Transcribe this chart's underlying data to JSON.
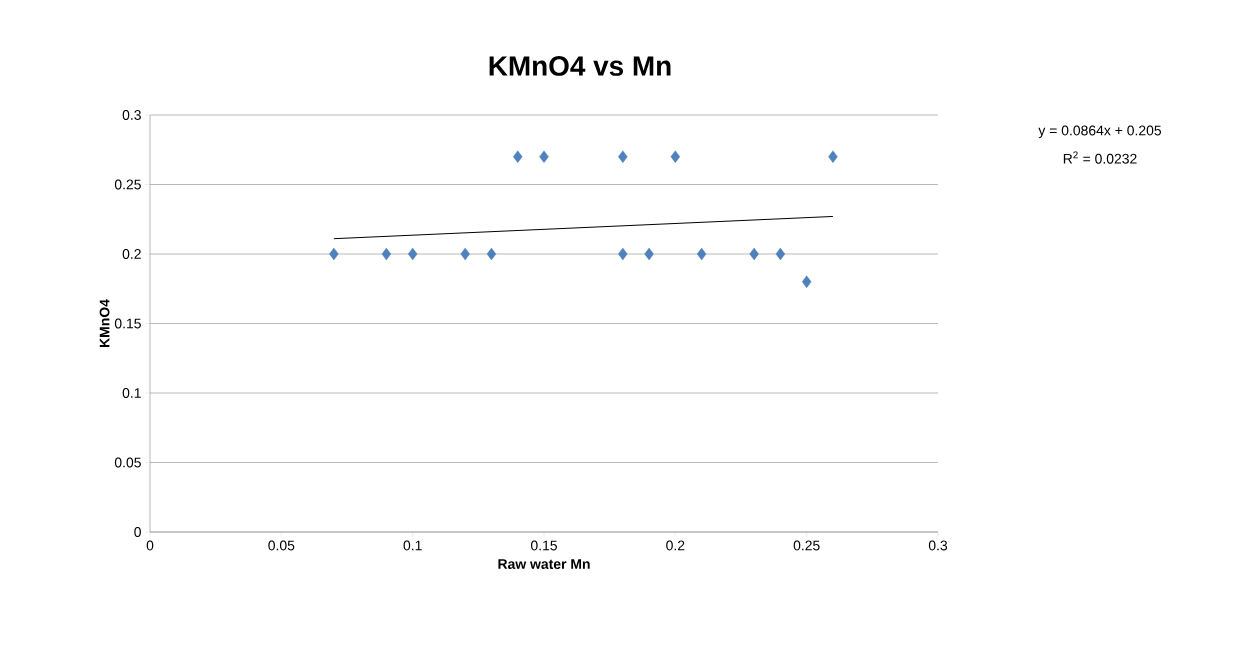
{
  "chart_data": {
    "type": "scatter",
    "title": "KMnO4 vs Mn",
    "xlabel": "Raw water Mn",
    "ylabel": "KMnO4",
    "series": [
      {
        "color": "#4f81bd",
        "x": [
          0.07,
          0.09,
          0.1,
          0.12,
          0.13,
          0.14,
          0.15,
          0.18,
          0.18,
          0.19,
          0.2,
          0.21,
          0.23,
          0.24,
          0.25,
          0.26
        ],
        "values": [
          0.2,
          0.2,
          0.2,
          0.2,
          0.2,
          0.27,
          0.27,
          0.27,
          0.2,
          0.2,
          0.27,
          0.2,
          0.2,
          0.2,
          0.18,
          0.27
        ]
      },
      {
        "type": "line",
        "marker": "none",
        "color": "#000000",
        "x": [
          0.07,
          0.26
        ],
        "values": [
          0.211,
          0.227
        ]
      }
    ],
    "xlim": [
      0,
      0.3
    ],
    "xticks": [
      0,
      0.05,
      0.1,
      0.15,
      0.2,
      0.25,
      0.3
    ],
    "ylim": [
      0,
      0.3
    ],
    "yticks": [
      0,
      0.05,
      0.1,
      0.15,
      0.2,
      0.25,
      0.3
    ],
    "grid": "y",
    "marker": "diamond",
    "annotations": [
      "y = 0.0864x + 0.205",
      "R$^{2}$ = 0.0232"
    ]
  }
}
